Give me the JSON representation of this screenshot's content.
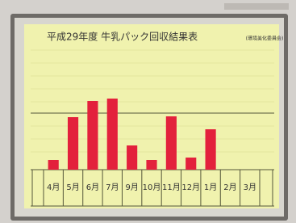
{
  "chart_data": {
    "type": "bar",
    "title": "平成29年度 牛乳パック回収結果表",
    "subtitle": "(環境美化委員会)",
    "categories": [
      "4月",
      "5月",
      "6月",
      "7月",
      "9月",
      "10月",
      "11月",
      "12月",
      "1月",
      "2月",
      "3月"
    ],
    "values": [
      12,
      65,
      85,
      88,
      30,
      12,
      66,
      15,
      50,
      null,
      null
    ],
    "color": "#e3213c",
    "ylim": [
      0,
      160
    ]
  }
}
